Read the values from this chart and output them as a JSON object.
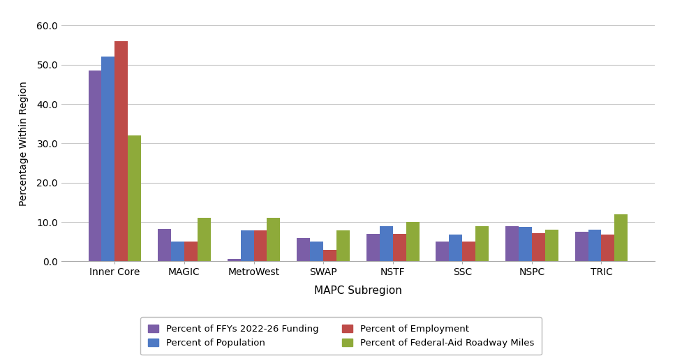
{
  "subregions": [
    "Inner Core",
    "MAGIC",
    "MetroWest",
    "SWAP",
    "NSTF",
    "SSC",
    "NSPC",
    "TRIC"
  ],
  "series": {
    "Percent of FFYs 2022-26 Funding": [
      48.5,
      8.3,
      0.6,
      6.0,
      7.0,
      5.0,
      9.0,
      7.5
    ],
    "Percent of Population": [
      52.0,
      5.0,
      7.8,
      5.0,
      9.0,
      6.8,
      8.8,
      8.0
    ],
    "Percent of Employment": [
      56.0,
      5.0,
      7.8,
      3.0,
      7.0,
      5.0,
      7.2,
      6.8
    ],
    "Percent of Federal-Aid Roadway Miles": [
      32.0,
      11.0,
      11.0,
      7.8,
      10.0,
      9.0,
      8.0,
      12.0
    ]
  },
  "colors": {
    "Percent of FFYs 2022-26 Funding": "#7B5EA7",
    "Percent of Population": "#4E79C4",
    "Percent of Employment": "#BE4B48",
    "Percent of Federal-Aid Roadway Miles": "#8EAA3A"
  },
  "legend_order": [
    "Percent of FFYs 2022-26 Funding",
    "Percent of Population",
    "Percent of Employment",
    "Percent of Federal-Aid Roadway Miles"
  ],
  "ylabel": "Percentage Within Region",
  "xlabel": "MAPC Subregion",
  "ylim": [
    0,
    60.0
  ],
  "yticks": [
    0.0,
    10.0,
    20.0,
    30.0,
    40.0,
    50.0,
    60.0
  ],
  "background_color": "#FFFFFF",
  "grid_color": "#C8C8C8",
  "bar_width": 0.19
}
